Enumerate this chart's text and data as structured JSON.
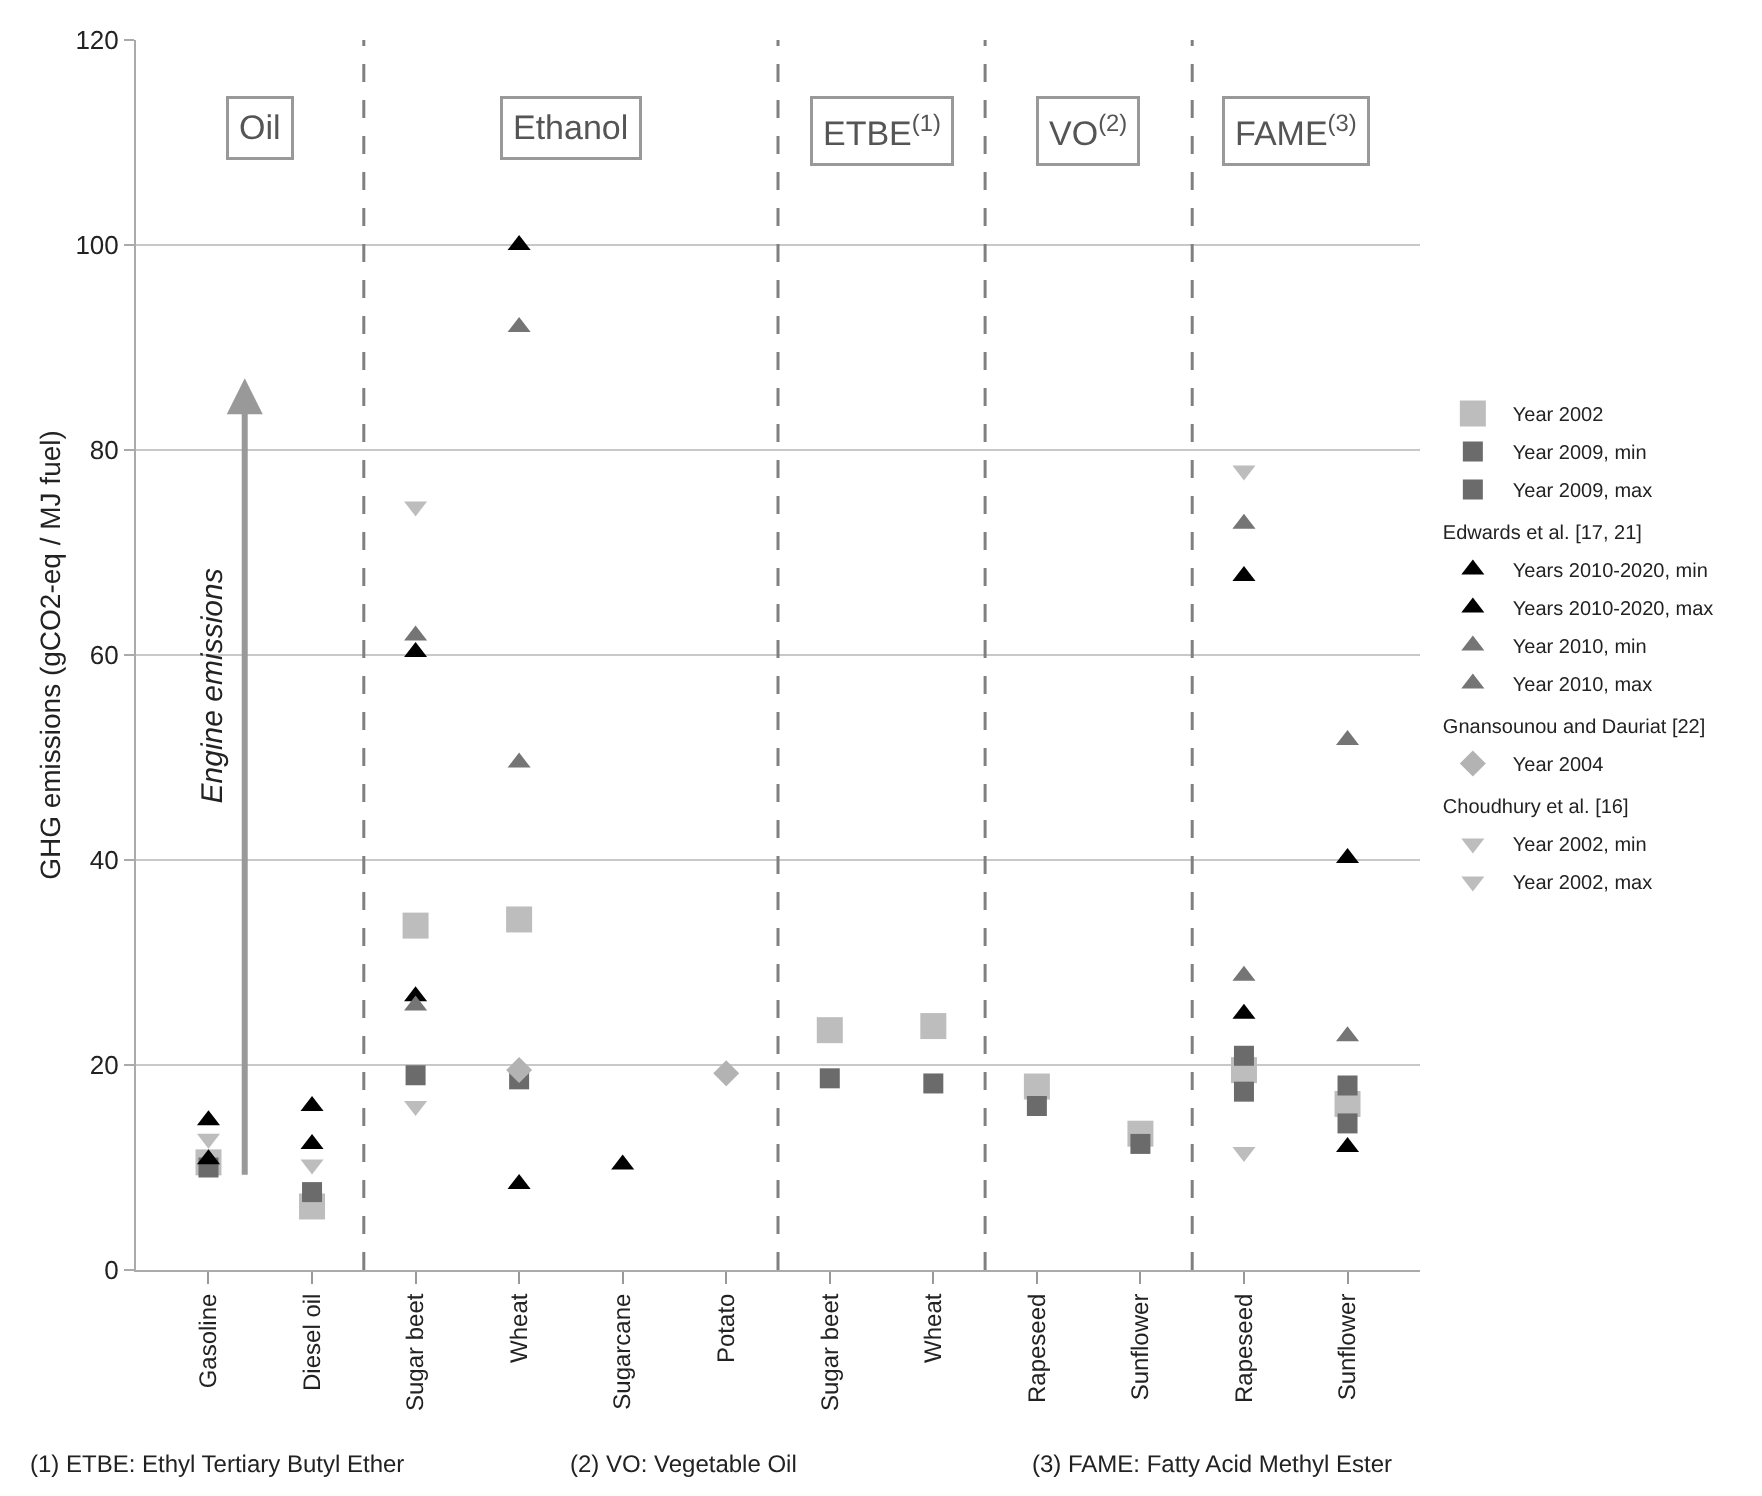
{
  "chart_data": {
    "type": "scatter",
    "ylabel": "GHG emissions (gCO2-eq / MJ fuel)",
    "categories": [
      "Gasoline",
      "Diesel oil",
      "Sugar beet",
      "Wheat",
      "Sugarcane",
      "Potato",
      "Sugar beet",
      "Wheat",
      "Rapeseed",
      "Sunflower",
      "Rapeseed",
      "Sunflower"
    ],
    "ylim": [
      0,
      120
    ],
    "yticks": [
      0,
      20,
      40,
      60,
      80,
      100,
      120
    ],
    "grid": "y",
    "legend": "right",
    "series": [
      {
        "name": "Year 2002",
        "color": "#bdbdbd",
        "marker": "square",
        "values": [
          10.5,
          6.2,
          33.6,
          34.2,
          null,
          null,
          23.4,
          23.8,
          17.9,
          13.3,
          19.5,
          16.2
        ]
      },
      {
        "name": "Year 2009, min",
        "color": "#6b6b6b",
        "marker": "square",
        "values": [
          10,
          7.6,
          19,
          18.6,
          null,
          null,
          18.7,
          18.2,
          16,
          12.3,
          17.4,
          14.3
        ]
      },
      {
        "name": "Year 2009, max",
        "color": "#6b6b6b",
        "marker": "square",
        "values": [
          null,
          null,
          null,
          null,
          null,
          null,
          null,
          null,
          null,
          null,
          20.9,
          18
        ]
      },
      {
        "name": "Years 2010-2020, min",
        "color": "#000000",
        "marker": "triangle",
        "values": [
          10.8,
          12.3,
          26.7,
          8.4,
          10.3,
          null,
          null,
          null,
          null,
          null,
          25,
          12
        ]
      },
      {
        "name": "Years 2010-2020, max",
        "color": "#000000",
        "marker": "triangle",
        "values": [
          14.6,
          16,
          60.3,
          100,
          null,
          null,
          null,
          null,
          null,
          null,
          67.7,
          40.2
        ]
      },
      {
        "name": "Year 2010, min",
        "color": "#757575",
        "marker": "triangle",
        "values": [
          null,
          null,
          25.8,
          49.5,
          null,
          null,
          null,
          null,
          null,
          null,
          28.7,
          22.8
        ]
      },
      {
        "name": "Year 2010, max",
        "color": "#757575",
        "marker": "triangle",
        "values": [
          null,
          null,
          61.9,
          92,
          null,
          null,
          null,
          null,
          null,
          null,
          72.8,
          51.7
        ]
      },
      {
        "name": "Year 2004",
        "color": "#b3b3b3",
        "marker": "diamond",
        "values": [
          null,
          null,
          null,
          19.5,
          null,
          19.2,
          null,
          null,
          null,
          null,
          null,
          null
        ]
      },
      {
        "name": "Year 2002, min",
        "color": "#bdbdbd",
        "marker": "triangle-down",
        "values": [
          12.8,
          10.3,
          16,
          null,
          null,
          null,
          null,
          null,
          null,
          null,
          11.5,
          null
        ]
      },
      {
        "name": "Year 2002, max",
        "color": "#bdbdbd",
        "marker": "triangle-down",
        "values": [
          null,
          null,
          74.5,
          null,
          null,
          null,
          null,
          null,
          null,
          null,
          78,
          null
        ]
      }
    ],
    "annotations": [
      "Oil",
      "Ethanol",
      "ETBE$^{(1)}$",
      "VO$^{(2)}$",
      "FAME$^{(3)}$",
      "Engine emissions",
      "(1) ETBE: Ethyl Tertiary Butyl Ether",
      "(2) VO: Vegetable Oil",
      "(3) FAME: Fatty Acid Methyl Ester",
      "Edwards et al. [17, 21]",
      "Gnansounou and Dauriat [22]",
      "Choudhury et al. [16]"
    ]
  }
}
